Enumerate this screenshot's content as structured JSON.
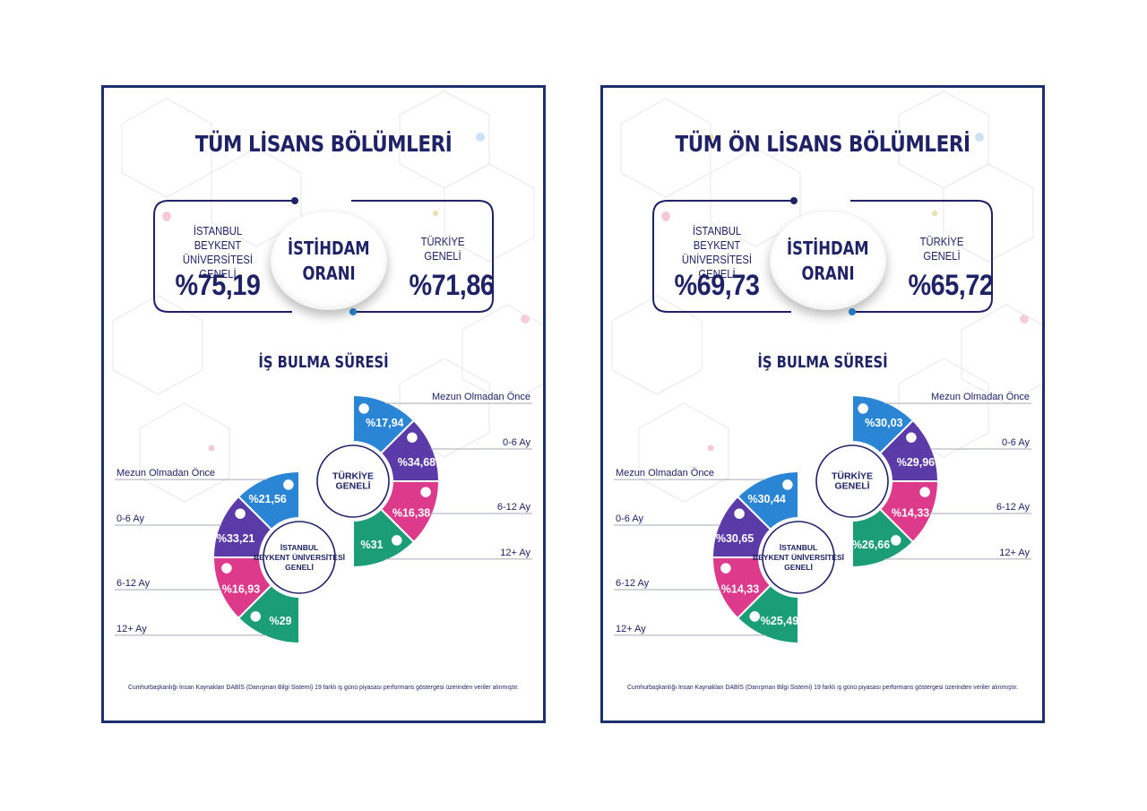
{
  "colors": {
    "navy": "#1f2366",
    "blue": "#2a86d4",
    "purple": "#5b3ba8",
    "pink": "#de3a8c",
    "teal": "#1b9e77",
    "gray_line": "#a6a9b8"
  },
  "panels": [
    {
      "title": "TÜM LİSANS BÖLÜMLERİ",
      "employment": {
        "center_line1": "İSTİHDAM",
        "center_line2": "ORANI",
        "uni_label_line1": "İSTANBUL",
        "uni_label_line2": "BEYKENT ÜNİVERSİTESİ",
        "uni_label_line3": "GENELİ",
        "uni_value": "%75,19",
        "tr_label_line1": "TÜRKİYE",
        "tr_label_line2": "GENELİ",
        "tr_value": "%71,86"
      },
      "subtitle": "İŞ BULMA SÜRESİ",
      "turkiye": {
        "center_line1": "TÜRKİYE",
        "center_line2": "GENELİ",
        "segments": [
          {
            "label": "Mezun Olmadan Önce",
            "value": "%17,94"
          },
          {
            "label": "0-6 Ay",
            "value": "%34,68"
          },
          {
            "label": "6-12 Ay",
            "value": "%16,38"
          },
          {
            "label": "12+ Ay",
            "value": "%31"
          }
        ]
      },
      "beykent": {
        "center_line1": "İSTANBUL",
        "center_line2": "BEYKENT ÜNİVERSİTESİ",
        "center_line3": "GENELİ",
        "segments": [
          {
            "label": "Mezun Olmadan Önce",
            "value": "%21,56"
          },
          {
            "label": "0-6 Ay",
            "value": "%33,21"
          },
          {
            "label": "6-12 Ay",
            "value": "%16,93"
          },
          {
            "label": "12+ Ay",
            "value": "%29"
          }
        ]
      },
      "footnote": "Cumhurbaşkanlığı İnsan Kaynakları DABİS (Danışman Bilgi Sistemi) 19 farklı iş günü piyasası performans göstergesi üzerinden veriler alınmıştır."
    },
    {
      "title": "TÜM ÖN LİSANS BÖLÜMLERİ",
      "employment": {
        "center_line1": "İSTİHDAM",
        "center_line2": "ORANI",
        "uni_label_line1": "İSTANBUL",
        "uni_label_line2": "BEYKENT ÜNİVERSİTESİ",
        "uni_label_line3": "GENELİ",
        "uni_value": "%69,73",
        "tr_label_line1": "TÜRKİYE",
        "tr_label_line2": "GENELİ",
        "tr_value": "%65,72"
      },
      "subtitle": "İŞ BULMA SÜRESİ",
      "turkiye": {
        "center_line1": "TÜRKİYE",
        "center_line2": "GENELİ",
        "segments": [
          {
            "label": "Mezun Olmadan Önce",
            "value": "%30,03"
          },
          {
            "label": "0-6 Ay",
            "value": "%29,96"
          },
          {
            "label": "6-12 Ay",
            "value": "%14,33"
          },
          {
            "label": "12+ Ay",
            "value": "%26,66"
          }
        ]
      },
      "beykent": {
        "center_line1": "İSTANBUL",
        "center_line2": "BEYKENT ÜNİVERSİTESİ",
        "center_line3": "GENELİ",
        "segments": [
          {
            "label": "Mezun Olmadan Önce",
            "value": "%30,44"
          },
          {
            "label": "0-6 Ay",
            "value": "%30,65"
          },
          {
            "label": "6-12 Ay",
            "value": "%14,33"
          },
          {
            "label": "12+ Ay",
            "value": "%25,49"
          }
        ]
      },
      "footnote": "Cumhurbaşkanlığı İnsan Kaynakları DABİS (Danışman Bilgi Sistemi) 19 farklı iş günü piyasası performans göstergesi üzerinden veriler alınmıştır."
    }
  ]
}
